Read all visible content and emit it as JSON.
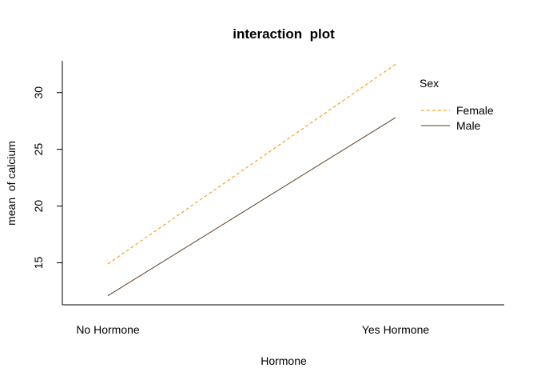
{
  "chart_data": {
    "type": "line",
    "title": "interaction  plot",
    "xlabel": "Hormone",
    "ylabel": "mean  of calcium",
    "categories": [
      "No Hormone",
      "Yes Hormone"
    ],
    "ylim": [
      11.3,
      32.8
    ],
    "yticks": [
      15,
      20,
      25,
      30
    ],
    "grid": false,
    "legend": {
      "title": "Sex",
      "position": "top-right"
    },
    "series": [
      {
        "name": "Female",
        "values": [
          14.9,
          32.5
        ],
        "color": "#FF8C00",
        "dash": "dashed"
      },
      {
        "name": "Male",
        "values": [
          12.1,
          27.8
        ],
        "color": "#5A3A22",
        "dash": "solid"
      }
    ]
  }
}
